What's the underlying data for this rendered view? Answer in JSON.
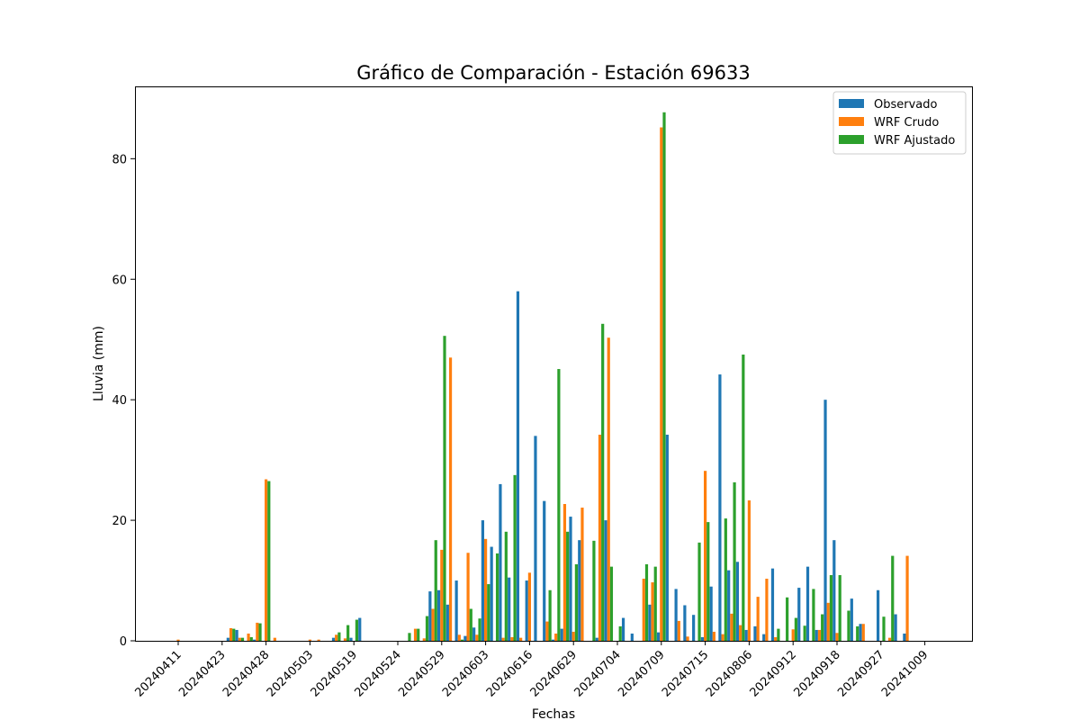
{
  "chart_data": {
    "type": "bar",
    "title": "Gráfico de Comparación - Estación 69633",
    "xlabel": "Fechas",
    "ylabel": "Lluvia (mm)",
    "ylim": [
      0,
      92
    ],
    "y_ticks": [
      0,
      20,
      40,
      60,
      80
    ],
    "x_ticks": [
      {
        "index": 0,
        "label": "20240411"
      },
      {
        "index": 5,
        "label": "20240423"
      },
      {
        "index": 10,
        "label": "20240428"
      },
      {
        "index": 15,
        "label": "20240503"
      },
      {
        "index": 20,
        "label": "20240519"
      },
      {
        "index": 25,
        "label": "20240524"
      },
      {
        "index": 30,
        "label": "20240529"
      },
      {
        "index": 35,
        "label": "20240603"
      },
      {
        "index": 40,
        "label": "20240616"
      },
      {
        "index": 45,
        "label": "20240629"
      },
      {
        "index": 50,
        "label": "20240704"
      },
      {
        "index": 55,
        "label": "20240709"
      },
      {
        "index": 60,
        "label": "20240715"
      },
      {
        "index": 65,
        "label": "20240806"
      },
      {
        "index": 70,
        "label": "20240912"
      },
      {
        "index": 75,
        "label": "20240918"
      },
      {
        "index": 80,
        "label": "20240927"
      },
      {
        "index": 85,
        "label": "20241009"
      }
    ],
    "legend_position": "top-right",
    "grid": false,
    "series": [
      {
        "name": "Observado",
        "color": "#1f77b4",
        "values": [
          0,
          0,
          0,
          0,
          0,
          0,
          0.5,
          1.8,
          0,
          0.2,
          0,
          0,
          0,
          0,
          0,
          0,
          0,
          0,
          0.5,
          0,
          0.5,
          3.8,
          0,
          0,
          0,
          0,
          0,
          0,
          0,
          8.2,
          8.4,
          6,
          10,
          0.8,
          2.2,
          20,
          15.6,
          26,
          10.5,
          58,
          10,
          34,
          23.2,
          0.2,
          2,
          20.6,
          16.7,
          0,
          0.5,
          20,
          0,
          3.8,
          1.2,
          0,
          6,
          1.4,
          34.2,
          8.6,
          5.9,
          4.3,
          0.6,
          9,
          44.2,
          11.7,
          13.1,
          1.8,
          2.4,
          1.1,
          12,
          0,
          0,
          8.8,
          12.3,
          1.8,
          40,
          16.7,
          0,
          7,
          2.8,
          0,
          8.4,
          0,
          4.4,
          1.2,
          0,
          0,
          0,
          0,
          0,
          0
        ]
      },
      {
        "name": "WRF Crudo",
        "color": "#ff7f0e",
        "values": [
          0.2,
          0,
          0,
          0,
          0,
          0,
          2.1,
          0.5,
          1.2,
          3,
          26.8,
          0.5,
          0,
          0,
          0,
          0.2,
          0.2,
          0,
          1,
          0.4,
          0,
          0,
          0,
          0,
          0,
          0,
          0,
          2,
          0.4,
          5.3,
          15.1,
          47,
          1,
          14.6,
          1,
          16.9,
          0,
          0.5,
          0.6,
          0.5,
          11.3,
          0,
          3.2,
          1.2,
          22.7,
          1.5,
          22.1,
          0,
          34.2,
          50.3,
          0,
          0,
          0,
          10.3,
          9.7,
          85.2,
          0,
          3.3,
          0.7,
          0,
          28.2,
          1.5,
          1.1,
          4.5,
          2.6,
          23.3,
          7.3,
          10.3,
          0.6,
          0,
          1.9,
          0,
          0,
          1.8,
          6.3,
          1.3,
          0,
          0,
          2.8,
          0,
          0,
          0.5,
          0,
          14.1,
          0,
          0,
          0,
          0,
          0,
          0
        ]
      },
      {
        "name": "WRF Ajustado",
        "color": "#2ca02c",
        "values": [
          0,
          0,
          0,
          0,
          0,
          0,
          2,
          0.5,
          0.6,
          2.9,
          26.5,
          0,
          0,
          0,
          0,
          0,
          0,
          0,
          1.4,
          2.6,
          3.5,
          0,
          0,
          0,
          0,
          0,
          1.3,
          2,
          4.1,
          16.7,
          50.6,
          0,
          0.2,
          5.3,
          3.7,
          9.4,
          14.5,
          18.1,
          27.5,
          0,
          0,
          0,
          8.4,
          45.1,
          18.1,
          12.7,
          0,
          16.6,
          52.6,
          12.3,
          2.4,
          0,
          0,
          12.7,
          12.3,
          87.7,
          0,
          0,
          0,
          16.3,
          19.7,
          0,
          20.3,
          26.3,
          47.5,
          0,
          0,
          0,
          2,
          7.2,
          3.8,
          2.5,
          8.6,
          4.4,
          10.9,
          10.9,
          5,
          2.4,
          0,
          0,
          4,
          14.1,
          0,
          0,
          0,
          0,
          0,
          0,
          0,
          0
        ]
      }
    ]
  }
}
